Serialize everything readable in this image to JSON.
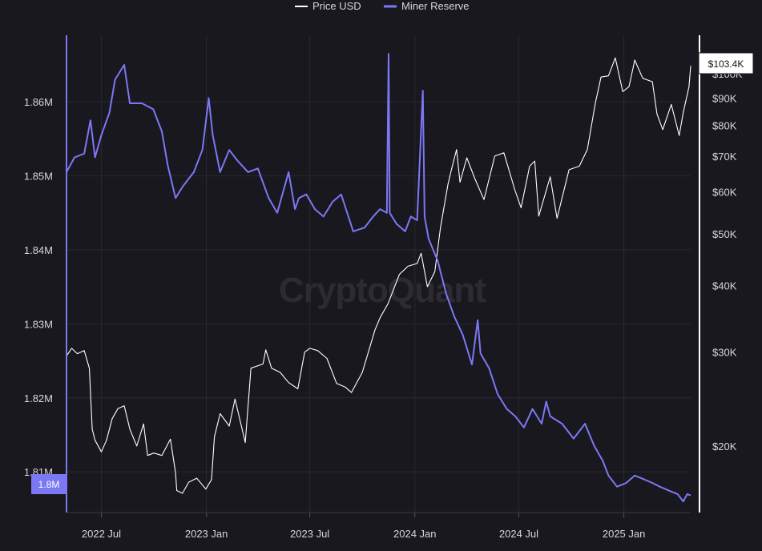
{
  "legend": {
    "price_label": "Price USD",
    "reserve_label": "Miner Reserve"
  },
  "watermark": "CryptoQuant",
  "colors": {
    "background": "#19181e",
    "grid": "#2a2930",
    "price": "#ffffff",
    "reserve": "#7b78f5",
    "left_axis": "#7b78f5",
    "right_axis": "#ffffff"
  },
  "badges": {
    "reserve_current": "1.8M",
    "price_current": "$103.4K"
  },
  "chart_data": {
    "type": "line",
    "x_axis": {
      "type": "date",
      "range": [
        "2022-05-01",
        "2025-04-28"
      ],
      "ticks": [
        {
          "date": "2022-07-01",
          "label": "2022 Jul"
        },
        {
          "date": "2023-01-01",
          "label": "2023 Jan"
        },
        {
          "date": "2023-07-01",
          "label": "2023 Jul"
        },
        {
          "date": "2024-01-01",
          "label": "2024 Jan"
        },
        {
          "date": "2024-07-01",
          "label": "2024 Jul"
        },
        {
          "date": "2025-01-01",
          "label": "2025 Jan"
        }
      ]
    },
    "y_left": {
      "label": "",
      "range": [
        1.8045,
        1.869
      ],
      "ticks": [
        {
          "value": 1.81,
          "label": "1.81M"
        },
        {
          "value": 1.82,
          "label": "1.82M"
        },
        {
          "value": 1.83,
          "label": "1.83M"
        },
        {
          "value": 1.84,
          "label": "1.84M"
        },
        {
          "value": 1.85,
          "label": "1.85M"
        },
        {
          "value": 1.86,
          "label": "1.86M"
        }
      ]
    },
    "y_right": {
      "label": "",
      "scale": "log",
      "range": [
        15000,
        118000
      ],
      "ticks": [
        {
          "value": 20000,
          "label": "$20K"
        },
        {
          "value": 30000,
          "label": "$30K"
        },
        {
          "value": 40000,
          "label": "$40K"
        },
        {
          "value": 50000,
          "label": "$50K"
        },
        {
          "value": 60000,
          "label": "$60K"
        },
        {
          "value": 70000,
          "label": "$70K"
        },
        {
          "value": 80000,
          "label": "$80K"
        },
        {
          "value": 90000,
          "label": "$90K"
        },
        {
          "value": 100000,
          "label": "$100K"
        }
      ]
    },
    "grid": true,
    "legend_position": "top-center",
    "series": [
      {
        "name": "Price USD",
        "axis": "right",
        "points": [
          [
            "2022-05-01",
            29500
          ],
          [
            "2022-05-10",
            30500
          ],
          [
            "2022-05-20",
            29800
          ],
          [
            "2022-06-01",
            30200
          ],
          [
            "2022-06-10",
            28000
          ],
          [
            "2022-06-15",
            21500
          ],
          [
            "2022-06-20",
            20500
          ],
          [
            "2022-07-01",
            19500
          ],
          [
            "2022-07-10",
            20500
          ],
          [
            "2022-07-20",
            22500
          ],
          [
            "2022-07-30",
            23500
          ],
          [
            "2022-08-10",
            23800
          ],
          [
            "2022-08-20",
            21500
          ],
          [
            "2022-09-01",
            20000
          ],
          [
            "2022-09-13",
            22000
          ],
          [
            "2022-09-20",
            19200
          ],
          [
            "2022-10-01",
            19400
          ],
          [
            "2022-10-15",
            19200
          ],
          [
            "2022-10-30",
            20600
          ],
          [
            "2022-11-08",
            17800
          ],
          [
            "2022-11-10",
            16500
          ],
          [
            "2022-11-20",
            16300
          ],
          [
            "2022-12-01",
            17100
          ],
          [
            "2022-12-15",
            17400
          ],
          [
            "2022-12-31",
            16600
          ],
          [
            "2023-01-10",
            17300
          ],
          [
            "2023-01-15",
            20800
          ],
          [
            "2023-01-25",
            23000
          ],
          [
            "2023-02-10",
            21800
          ],
          [
            "2023-02-20",
            24500
          ],
          [
            "2023-03-10",
            20300
          ],
          [
            "2023-03-20",
            28000
          ],
          [
            "2023-04-10",
            28500
          ],
          [
            "2023-04-15",
            30300
          ],
          [
            "2023-04-25",
            28000
          ],
          [
            "2023-05-10",
            27500
          ],
          [
            "2023-05-25",
            26300
          ],
          [
            "2023-06-10",
            25600
          ],
          [
            "2023-06-22",
            30000
          ],
          [
            "2023-07-01",
            30500
          ],
          [
            "2023-07-15",
            30200
          ],
          [
            "2023-07-31",
            29200
          ],
          [
            "2023-08-17",
            26200
          ],
          [
            "2023-09-01",
            25800
          ],
          [
            "2023-09-12",
            25200
          ],
          [
            "2023-10-01",
            27500
          ],
          [
            "2023-10-23",
            33000
          ],
          [
            "2023-11-01",
            34800
          ],
          [
            "2023-11-15",
            37000
          ],
          [
            "2023-12-05",
            42000
          ],
          [
            "2023-12-20",
            43500
          ],
          [
            "2024-01-05",
            44000
          ],
          [
            "2024-01-12",
            46000
          ],
          [
            "2024-01-23",
            39800
          ],
          [
            "2024-02-05",
            42500
          ],
          [
            "2024-02-15",
            51500
          ],
          [
            "2024-02-28",
            62000
          ],
          [
            "2024-03-05",
            66000
          ],
          [
            "2024-03-14",
            72000
          ],
          [
            "2024-03-20",
            62500
          ],
          [
            "2024-04-01",
            69500
          ],
          [
            "2024-04-15",
            63500
          ],
          [
            "2024-05-01",
            58000
          ],
          [
            "2024-05-20",
            70000
          ],
          [
            "2024-06-05",
            71000
          ],
          [
            "2024-06-24",
            60500
          ],
          [
            "2024-07-05",
            56000
          ],
          [
            "2024-07-20",
            67000
          ],
          [
            "2024-07-29",
            68500
          ],
          [
            "2024-08-05",
            54000
          ],
          [
            "2024-08-25",
            64000
          ],
          [
            "2024-09-06",
            53500
          ],
          [
            "2024-09-27",
            66000
          ],
          [
            "2024-10-15",
            67000
          ],
          [
            "2024-10-29",
            72000
          ],
          [
            "2024-11-12",
            88000
          ],
          [
            "2024-11-22",
            98500
          ],
          [
            "2024-12-05",
            99000
          ],
          [
            "2024-12-17",
            107000
          ],
          [
            "2024-12-30",
            92500
          ],
          [
            "2025-01-10",
            94500
          ],
          [
            "2025-01-20",
            106000
          ],
          [
            "2025-02-03",
            98000
          ],
          [
            "2025-02-20",
            96500
          ],
          [
            "2025-02-28",
            84000
          ],
          [
            "2025-03-10",
            78500
          ],
          [
            "2025-03-25",
            87500
          ],
          [
            "2025-04-08",
            76500
          ],
          [
            "2025-04-15",
            84500
          ],
          [
            "2025-04-25",
            94500
          ],
          [
            "2025-04-28",
            103400
          ]
        ]
      },
      {
        "name": "Miner Reserve",
        "axis": "left",
        "points": [
          [
            "2022-05-01",
            1.8505
          ],
          [
            "2022-05-15",
            1.8525
          ],
          [
            "2022-06-01",
            1.853
          ],
          [
            "2022-06-12",
            1.8575
          ],
          [
            "2022-06-20",
            1.8525
          ],
          [
            "2022-07-01",
            1.8555
          ],
          [
            "2022-07-15",
            1.8585
          ],
          [
            "2022-07-25",
            1.863
          ],
          [
            "2022-08-10",
            1.865
          ],
          [
            "2022-08-20",
            1.8598
          ],
          [
            "2022-09-10",
            1.8598
          ],
          [
            "2022-09-30",
            1.859
          ],
          [
            "2022-10-15",
            1.856
          ],
          [
            "2022-10-25",
            1.8515
          ],
          [
            "2022-11-08",
            1.847
          ],
          [
            "2022-11-20",
            1.8485
          ],
          [
            "2022-12-10",
            1.8505
          ],
          [
            "2022-12-25",
            1.8535
          ],
          [
            "2023-01-05",
            1.8605
          ],
          [
            "2023-01-12",
            1.8555
          ],
          [
            "2023-01-25",
            1.8505
          ],
          [
            "2023-02-10",
            1.8535
          ],
          [
            "2023-02-25",
            1.852
          ],
          [
            "2023-03-15",
            1.8505
          ],
          [
            "2023-04-01",
            1.851
          ],
          [
            "2023-04-20",
            1.847
          ],
          [
            "2023-05-05",
            1.845
          ],
          [
            "2023-05-25",
            1.8505
          ],
          [
            "2023-06-05",
            1.8455
          ],
          [
            "2023-06-12",
            1.847
          ],
          [
            "2023-06-25",
            1.8475
          ],
          [
            "2023-07-10",
            1.8455
          ],
          [
            "2023-07-25",
            1.8445
          ],
          [
            "2023-08-10",
            1.8465
          ],
          [
            "2023-08-25",
            1.8475
          ],
          [
            "2023-09-15",
            1.8425
          ],
          [
            "2023-10-05",
            1.843
          ],
          [
            "2023-10-20",
            1.8445
          ],
          [
            "2023-11-01",
            1.8455
          ],
          [
            "2023-11-13",
            1.845
          ],
          [
            "2023-11-16",
            1.8665
          ],
          [
            "2023-11-18",
            1.845
          ],
          [
            "2023-11-30",
            1.8435
          ],
          [
            "2023-12-15",
            1.8425
          ],
          [
            "2023-12-25",
            1.8445
          ],
          [
            "2024-01-05",
            1.844
          ],
          [
            "2024-01-15",
            1.8615
          ],
          [
            "2024-01-18",
            1.8445
          ],
          [
            "2024-01-25",
            1.8415
          ],
          [
            "2024-02-10",
            1.8385
          ],
          [
            "2024-02-25",
            1.834
          ],
          [
            "2024-03-10",
            1.831
          ],
          [
            "2024-03-25",
            1.8285
          ],
          [
            "2024-04-10",
            1.8245
          ],
          [
            "2024-04-20",
            1.8305
          ],
          [
            "2024-04-25",
            1.826
          ],
          [
            "2024-05-10",
            1.824
          ],
          [
            "2024-05-25",
            1.8205
          ],
          [
            "2024-06-10",
            1.8185
          ],
          [
            "2024-06-25",
            1.8175
          ],
          [
            "2024-07-10",
            1.816
          ],
          [
            "2024-07-25",
            1.8185
          ],
          [
            "2024-08-10",
            1.8165
          ],
          [
            "2024-08-18",
            1.8195
          ],
          [
            "2024-08-25",
            1.8175
          ],
          [
            "2024-09-15",
            1.8165
          ],
          [
            "2024-10-05",
            1.8145
          ],
          [
            "2024-10-25",
            1.8165
          ],
          [
            "2024-11-10",
            1.8135
          ],
          [
            "2024-11-25",
            1.8115
          ],
          [
            "2024-12-05",
            1.8095
          ],
          [
            "2024-12-20",
            1.808
          ],
          [
            "2025-01-05",
            1.8085
          ],
          [
            "2025-01-20",
            1.8095
          ],
          [
            "2025-02-05",
            1.809
          ],
          [
            "2025-02-20",
            1.8085
          ],
          [
            "2025-03-05",
            1.808
          ],
          [
            "2025-03-20",
            1.8075
          ],
          [
            "2025-04-05",
            1.807
          ],
          [
            "2025-04-15",
            1.806
          ],
          [
            "2025-04-22",
            1.807
          ],
          [
            "2025-04-28",
            1.8068
          ]
        ]
      }
    ]
  }
}
